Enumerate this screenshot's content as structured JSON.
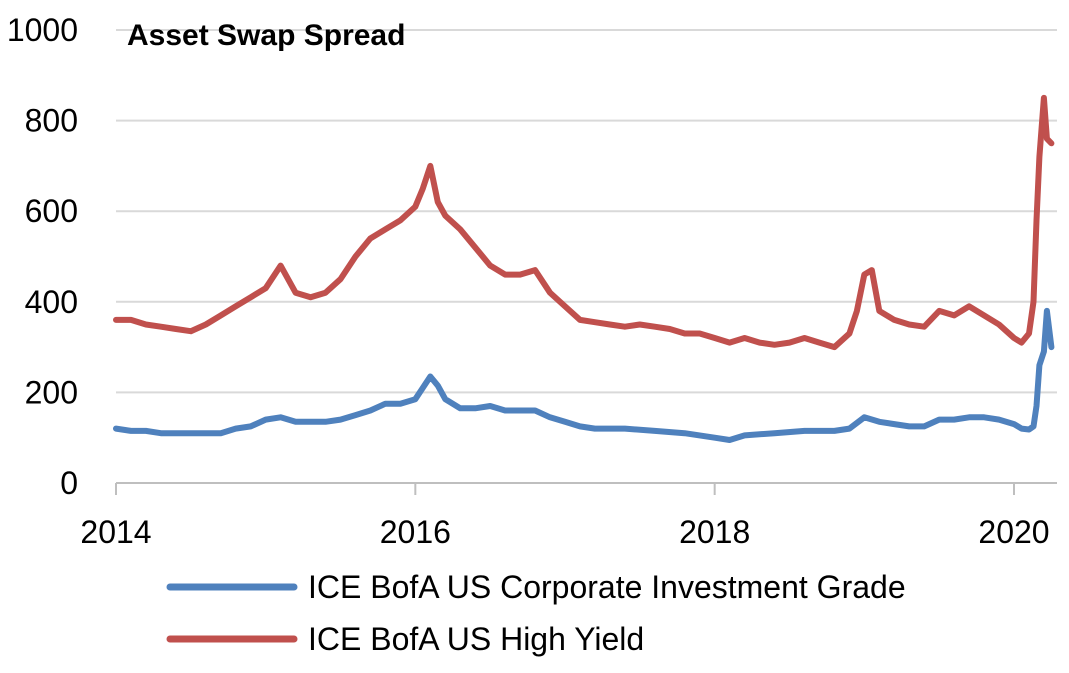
{
  "chart_data": {
    "type": "line",
    "title": "Asset Swap Spread",
    "xlabel": "",
    "ylabel": "",
    "xlim": [
      2014.0,
      2020.25
    ],
    "ylim": [
      0,
      1000
    ],
    "x_ticks": [
      "2014",
      "2016",
      "2018",
      "2020"
    ],
    "y_ticks": [
      "0",
      "200",
      "400",
      "600",
      "800",
      "1000"
    ],
    "grid": true,
    "legend_position": "bottom",
    "series": [
      {
        "name": "ICE BofA US Corporate Investment Grade",
        "color": "#4F81BD",
        "x": [
          2014.0,
          2014.1,
          2014.2,
          2014.3,
          2014.5,
          2014.7,
          2014.8,
          2014.9,
          2015.0,
          2015.1,
          2015.2,
          2015.3,
          2015.4,
          2015.5,
          2015.6,
          2015.7,
          2015.8,
          2015.9,
          2016.0,
          2016.05,
          2016.1,
          2016.15,
          2016.2,
          2016.3,
          2016.4,
          2016.5,
          2016.6,
          2016.7,
          2016.8,
          2016.9,
          2017.0,
          2017.1,
          2017.2,
          2017.4,
          2017.6,
          2017.8,
          2018.0,
          2018.1,
          2018.2,
          2018.4,
          2018.6,
          2018.8,
          2018.9,
          2019.0,
          2019.1,
          2019.2,
          2019.3,
          2019.4,
          2019.5,
          2019.6,
          2019.7,
          2019.8,
          2019.9,
          2020.0,
          2020.05,
          2020.1,
          2020.13,
          2020.15,
          2020.17,
          2020.2,
          2020.22,
          2020.25
        ],
        "y": [
          120,
          115,
          115,
          110,
          110,
          110,
          120,
          125,
          140,
          145,
          135,
          135,
          135,
          140,
          150,
          160,
          175,
          175,
          185,
          210,
          235,
          215,
          185,
          165,
          165,
          170,
          160,
          160,
          160,
          145,
          135,
          125,
          120,
          120,
          115,
          110,
          100,
          95,
          105,
          110,
          115,
          115,
          120,
          145,
          135,
          130,
          125,
          125,
          140,
          140,
          145,
          145,
          140,
          130,
          120,
          118,
          125,
          170,
          260,
          290,
          380,
          300
        ]
      },
      {
        "name": "ICE BofA US High Yield",
        "color": "#C0504D",
        "x": [
          2014.0,
          2014.1,
          2014.2,
          2014.3,
          2014.4,
          2014.5,
          2014.6,
          2014.7,
          2014.8,
          2014.9,
          2015.0,
          2015.1,
          2015.2,
          2015.3,
          2015.4,
          2015.5,
          2015.6,
          2015.7,
          2015.8,
          2015.9,
          2016.0,
          2016.05,
          2016.1,
          2016.15,
          2016.2,
          2016.3,
          2016.4,
          2016.5,
          2016.6,
          2016.7,
          2016.8,
          2016.9,
          2017.0,
          2017.1,
          2017.2,
          2017.3,
          2017.4,
          2017.5,
          2017.6,
          2017.7,
          2017.8,
          2017.9,
          2018.0,
          2018.1,
          2018.2,
          2018.3,
          2018.4,
          2018.5,
          2018.6,
          2018.7,
          2018.8,
          2018.9,
          2018.95,
          2019.0,
          2019.05,
          2019.1,
          2019.2,
          2019.3,
          2019.4,
          2019.5,
          2019.6,
          2019.7,
          2019.8,
          2019.9,
          2020.0,
          2020.05,
          2020.1,
          2020.13,
          2020.15,
          2020.17,
          2020.2,
          2020.22,
          2020.25
        ],
        "y": [
          360,
          360,
          350,
          345,
          340,
          335,
          350,
          370,
          390,
          410,
          430,
          480,
          420,
          410,
          420,
          450,
          500,
          540,
          560,
          580,
          610,
          650,
          700,
          620,
          590,
          560,
          520,
          480,
          460,
          460,
          470,
          420,
          390,
          360,
          355,
          350,
          345,
          350,
          345,
          340,
          330,
          330,
          320,
          310,
          320,
          310,
          305,
          310,
          320,
          310,
          300,
          330,
          380,
          460,
          470,
          380,
          360,
          350,
          345,
          380,
          370,
          390,
          370,
          350,
          320,
          310,
          330,
          400,
          580,
          720,
          850,
          760,
          750
        ]
      }
    ]
  }
}
